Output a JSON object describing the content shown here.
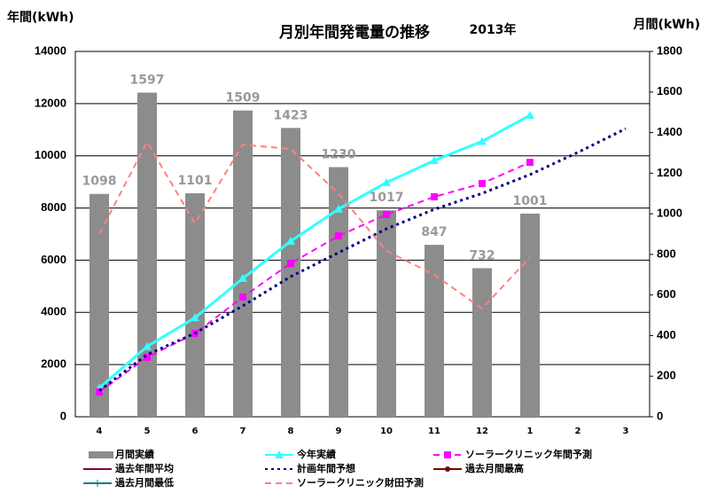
{
  "chart_data": {
    "type": "bar-line",
    "title": "月別年間発電量の推移",
    "subtitle": "2013年",
    "y_label": "年間(kWh)",
    "y2_label": "月間(kWh)",
    "categories": [
      "4",
      "5",
      "6",
      "7",
      "8",
      "9",
      "10",
      "11",
      "12",
      "1",
      "2",
      "3"
    ],
    "ylim": [
      0,
      14000
    ],
    "yticks": [
      0,
      2000,
      4000,
      6000,
      8000,
      10000,
      12000,
      14000
    ],
    "y2lim": [
      0,
      1800
    ],
    "y2ticks": [
      0,
      200,
      400,
      600,
      800,
      1000,
      1200,
      1400,
      1600,
      1800
    ],
    "grid": true,
    "series": [
      {
        "name": "月間実績",
        "kind": "bar",
        "axis": "y2",
        "color": "#8c8c8c",
        "data_labels": true,
        "values": [
          1098,
          1597,
          1101,
          1509,
          1423,
          1230,
          1017,
          847,
          732,
          1001,
          null,
          null
        ]
      },
      {
        "name": "今年実績",
        "kind": "line",
        "color": "#33ffff",
        "marker": "triangle",
        "dash": "solid",
        "values": [
          1098,
          2695,
          3796,
          5305,
          6728,
          7958,
          8975,
          9822,
          10554,
          11555,
          null,
          null
        ]
      },
      {
        "name": "ソーラークリニック年間予測",
        "kind": "line",
        "color": "#ff00ff",
        "marker": "square",
        "dash": "dash",
        "values": [
          950,
          2280,
          3190,
          4590,
          5880,
          6930,
          7750,
          8430,
          8940,
          9750,
          null,
          null
        ]
      },
      {
        "name": "過去年間平均",
        "kind": "line",
        "color": "#800040",
        "marker": "none",
        "dash": "solid",
        "values": [
          null,
          null,
          null,
          null,
          null,
          null,
          null,
          null,
          null,
          null,
          null,
          null
        ]
      },
      {
        "name": "計画年間予想",
        "kind": "line",
        "color": "#000080",
        "marker": "none",
        "dash": "dot",
        "values": [
          1000,
          2380,
          3200,
          4250,
          5370,
          6290,
          7200,
          7950,
          8560,
          9280,
          10130,
          11040
        ]
      },
      {
        "name": "過去月間最高",
        "kind": "line",
        "color": "#800000",
        "marker": "circle",
        "dash": "solid",
        "values": [
          null,
          null,
          null,
          null,
          null,
          null,
          null,
          null,
          null,
          null,
          null,
          null
        ]
      },
      {
        "name": "過去月間最低",
        "kind": "line",
        "color": "#008080",
        "marker": "plus",
        "dash": "solid",
        "values": [
          null,
          null,
          null,
          null,
          null,
          null,
          null,
          null,
          null,
          null,
          null,
          null
        ]
      },
      {
        "name": "ソーラークリニック財田予測",
        "kind": "line",
        "axis": "y2",
        "color": "#ff8080",
        "marker": "none",
        "dash": "dash",
        "values": [
          900,
          1354,
          952,
          1341,
          1319,
          1100,
          817,
          700,
          533,
          786,
          null,
          null
        ]
      }
    ]
  }
}
